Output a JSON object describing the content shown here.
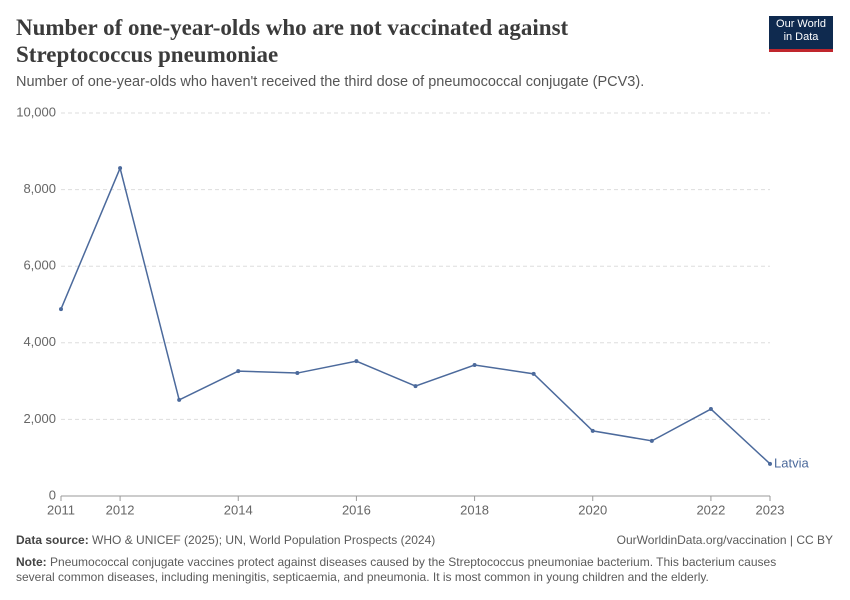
{
  "header": {
    "title": "Number of one-year-olds who are not vaccinated against Streptococcus pneumoniae",
    "subtitle": "Number of one-year-olds who haven't received the third dose of pneumococcal conjugate (PCV3).",
    "logo": [
      "Our World",
      "in Data"
    ]
  },
  "chart_data": {
    "type": "line",
    "x": [
      2011,
      2012,
      2013,
      2014,
      2015,
      2016,
      2017,
      2018,
      2019,
      2020,
      2021,
      2022,
      2023
    ],
    "series": [
      {
        "name": "Latvia",
        "color": "#4c6a9c",
        "values": [
          4880,
          8560,
          2510,
          3260,
          3210,
          3520,
          2870,
          3420,
          3190,
          1700,
          1440,
          2270,
          840
        ]
      }
    ],
    "xlim": [
      2011,
      2023
    ],
    "xticks": [
      2011,
      2012,
      2014,
      2016,
      2018,
      2020,
      2022,
      2023
    ],
    "ylim": [
      0,
      10000
    ],
    "yticks": [
      0,
      {
        "value": 2000,
        "label": "2,000"
      },
      {
        "value": 4000,
        "label": "4,000"
      },
      {
        "value": 6000,
        "label": "6,000"
      },
      {
        "value": 8000,
        "label": "8,000"
      },
      {
        "value": 10000,
        "label": "10,000"
      }
    ],
    "grid": true
  },
  "footer": {
    "source_label": "Data source:",
    "source": "WHO & UNICEF (2025); UN, World Population Prospects (2024)",
    "link": "OurWorldinData.org/vaccination | CC BY",
    "note_label": "Note:",
    "note": "Pneumococcal conjugate vaccines protect against diseases caused by the Streptococcus pneumoniae bacterium. This bacterium causes several common diseases, including meningitis, septicaemia, and pneumonia. It is most common in young children and the elderly."
  }
}
